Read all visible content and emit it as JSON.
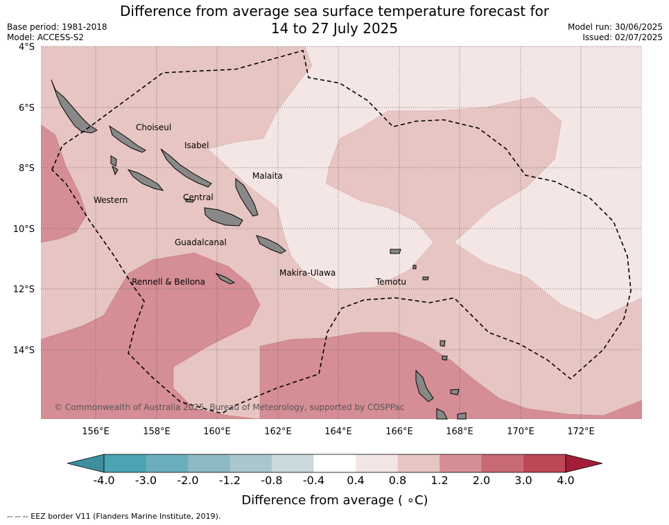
{
  "header": {
    "title_line1": "Difference from average sea surface temperature forecast for",
    "title_line2": "14 to 27 July 2025",
    "base_period": "Base period: 1981-2018",
    "model": "Model: ACCESS-S2",
    "model_run": "Model run: 30/06/2025",
    "issued": "Issued: 02/07/2025"
  },
  "map": {
    "lat_labels": [
      "4°S",
      "6°S",
      "8°S",
      "10°S",
      "12°S",
      "14°S"
    ],
    "lon_labels": [
      "156°E",
      "158°E",
      "160°E",
      "162°E",
      "164°E",
      "166°E",
      "168°E",
      "170°E",
      "172°E"
    ],
    "places": [
      "Choiseul",
      "Isabel",
      "Malaita",
      "Western",
      "Central",
      "Guadalcanal",
      "Makira-Ulawa",
      "Rennell & Bellona",
      "Temotu"
    ],
    "credit": "© Commonwealth of Australia 2025, Bureau of Meteorology, supported by COSPPac",
    "colors": {
      "land": "#888888",
      "c_04_08": "#f4e6e5",
      "c_08_12": "#e7c5c2",
      "c_12_20": "#d58e95",
      "eez": "#000000"
    }
  },
  "colorbar": {
    "ticks": [
      "-4.0",
      "-3.0",
      "-2.0",
      "-1.2",
      "-0.8",
      "-0.4",
      "0.4",
      "0.8",
      "1.2",
      "2.0",
      "3.0",
      "4.0"
    ],
    "title": "Difference from average ( ∘C)",
    "colors": [
      "#3d8f9d",
      "#4ba3b3",
      "#6aaebd",
      "#8db9c4",
      "#a9c6cc",
      "#c9d9dd",
      "#ffffff",
      "#f4e6e5",
      "#e7c5c2",
      "#d58e95",
      "#c86a76",
      "#bd4657",
      "#a31d39"
    ]
  },
  "footer": {
    "legend": "-- -- -- EEZ border V11 (Flanders Marine Institute, 2019)."
  }
}
